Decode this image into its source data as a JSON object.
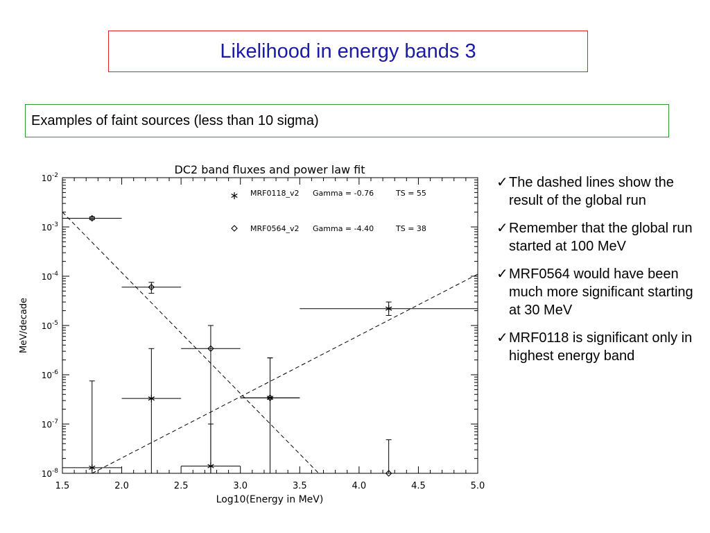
{
  "slide": {
    "title": "Likelihood in energy bands 3",
    "subtitle": "Examples of faint sources (less than 10 sigma)",
    "check_glyph": "✓",
    "bullets": [
      "The dashed lines show the result of the global run",
      "Remember that the global run started at 100 MeV",
      "MRF0564 would have been much more significant starting at 30 MeV",
      "MRF0118 is significant only in highest energy band"
    ],
    "colors": {
      "title": "#1a1aa6",
      "title_border": "#e02020",
      "subtitle_border": "#2e9a2e"
    }
  },
  "chart_data": {
    "type": "scatter",
    "title": "DC2 band fluxes and power law fit",
    "xlabel": "Log10(Energy in MeV)",
    "ylabel": "MeV/decade",
    "xlim": [
      1.5,
      5.0
    ],
    "ylim_log10": [
      -8,
      -2
    ],
    "y_scale": "log",
    "x_ticks": [
      "1.5",
      "2.0",
      "2.5",
      "3.0",
      "3.5",
      "4.0",
      "4.5",
      "5.0"
    ],
    "y_ticks": [
      {
        "base": "10",
        "exp": "-2"
      },
      {
        "base": "10",
        "exp": "-3"
      },
      {
        "base": "10",
        "exp": "-4"
      },
      {
        "base": "10",
        "exp": "-5"
      },
      {
        "base": "10",
        "exp": "-6"
      },
      {
        "base": "10",
        "exp": "-7"
      },
      {
        "base": "10",
        "exp": "-8"
      }
    ],
    "legend_position": "top-right",
    "legend": [
      {
        "symbol": "*",
        "name": "MRF0118_v2",
        "gamma": "Gamma = -0.76",
        "ts": "TS = 55"
      },
      {
        "symbol": "◇",
        "name": "MRF0564_v2",
        "gamma": "Gamma = -4.40",
        "ts": "TS = 38"
      }
    ],
    "series": [
      {
        "name": "MRF0118_v2",
        "marker": "star",
        "points": [
          {
            "x": 1.75,
            "xlo": 1.5,
            "xhi": 2.0,
            "y": 1.3e-08,
            "ylo": 1e-08,
            "yhi": 7.5e-07
          },
          {
            "x": 2.25,
            "xlo": 2.0,
            "xhi": 2.5,
            "y": 3.3e-07,
            "ylo": 1e-08,
            "yhi": 3.4e-06
          },
          {
            "x": 2.75,
            "xlo": 2.5,
            "xhi": 3.0,
            "y": 1.4e-08,
            "ylo": 1e-08,
            "yhi": 1e-07
          },
          {
            "x": 3.25,
            "xlo": 3.0,
            "xhi": 3.5,
            "y": 3.4e-07,
            "ylo": 1e-08,
            "yhi": 2.2e-06
          },
          {
            "x": 4.25,
            "xlo": 3.5,
            "xhi": 5.0,
            "y": 2.2e-05,
            "ylo": 1.6e-05,
            "yhi": 3e-05
          }
        ],
        "fit_line": [
          [
            1.75,
            1e-08
          ],
          [
            5.0,
            0.00011
          ]
        ]
      },
      {
        "name": "MRF0564_v2",
        "marker": "diamond",
        "points": [
          {
            "x": 1.75,
            "xlo": 1.5,
            "xhi": 2.0,
            "y": 0.0015,
            "ylo": 0.0014,
            "yhi": 0.0016
          },
          {
            "x": 2.25,
            "xlo": 2.0,
            "xhi": 2.5,
            "y": 6e-05,
            "ylo": 4.5e-05,
            "yhi": 7.5e-05
          },
          {
            "x": 2.75,
            "xlo": 2.5,
            "xhi": 3.0,
            "y": 3.4e-06,
            "ylo": 1e-08,
            "yhi": 1e-05
          },
          {
            "x": 3.25,
            "xlo": 3.0,
            "xhi": 3.5,
            "y": 3.4e-07,
            "ylo": 1e-08,
            "yhi": 2.2e-06
          },
          {
            "x": 4.25,
            "xlo": 3.5,
            "xhi": 5.0,
            "y": 1e-08,
            "ylo": 1e-08,
            "yhi": 4.8e-08
          }
        ],
        "fit_line": [
          [
            1.5,
            0.002
          ],
          [
            3.66,
            1e-08
          ]
        ]
      }
    ]
  }
}
